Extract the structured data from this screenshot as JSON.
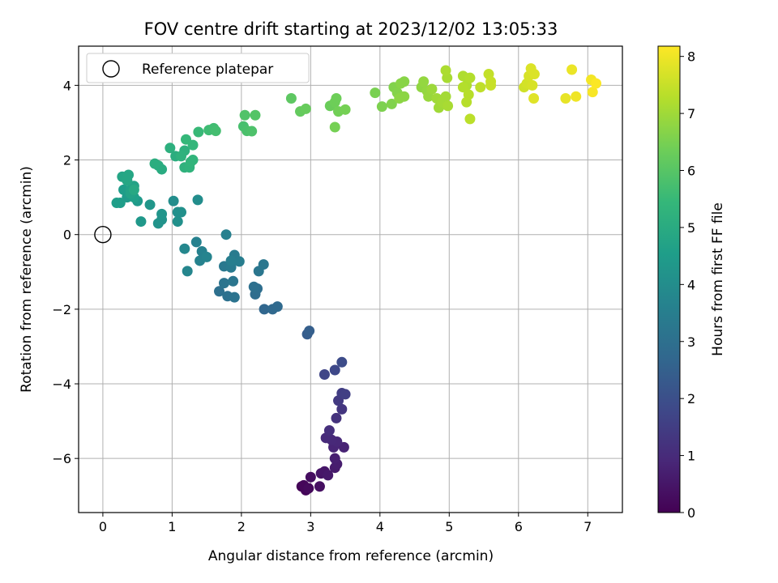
{
  "chart_data": {
    "type": "scatter",
    "title": "FOV centre drift starting at 2023/12/02 13:05:33",
    "xlabel": "Angular distance from reference (arcmin)",
    "ylabel": "Rotation from reference (arcmin)",
    "xlim": [
      -0.35,
      7.5
    ],
    "ylim": [
      -7.45,
      5.05
    ],
    "xticks": [
      0,
      1,
      2,
      3,
      4,
      5,
      6,
      7
    ],
    "yticks": [
      -6,
      -4,
      -2,
      0,
      2,
      4
    ],
    "grid": true,
    "legend": {
      "placement": "top-left",
      "label": "Reference platepar"
    },
    "reference_point": {
      "x": 0,
      "y": 0
    },
    "colorbar": {
      "label": "Hours from first FF file",
      "range": [
        0,
        8.18
      ],
      "ticks": [
        0,
        1,
        2,
        3,
        4,
        5,
        6,
        7,
        8
      ],
      "colormap": [
        "#440154",
        "#482878",
        "#3e4989",
        "#31688e",
        "#26828e",
        "#1f9e89",
        "#35b779",
        "#6ece58",
        "#b5de2b",
        "#fde725"
      ]
    },
    "series": [
      {
        "points": [
          {
            "x": 2.87,
            "y": -6.75,
            "t": 0.05
          },
          {
            "x": 2.93,
            "y": -6.85,
            "t": 0.1
          },
          {
            "x": 2.9,
            "y": -6.72,
            "t": 0.15
          },
          {
            "x": 2.97,
            "y": -6.8,
            "t": 0.2
          },
          {
            "x": 3.0,
            "y": -6.5,
            "t": 0.3
          },
          {
            "x": 3.13,
            "y": -6.75,
            "t": 0.35
          },
          {
            "x": 3.15,
            "y": -6.4,
            "t": 0.45
          },
          {
            "x": 3.2,
            "y": -6.35,
            "t": 0.5
          },
          {
            "x": 3.25,
            "y": -6.45,
            "t": 0.55
          },
          {
            "x": 3.35,
            "y": -6.25,
            "t": 0.6
          },
          {
            "x": 3.38,
            "y": -6.15,
            "t": 0.65
          },
          {
            "x": 3.35,
            "y": -6.0,
            "t": 0.7
          },
          {
            "x": 3.48,
            "y": -5.7,
            "t": 0.8
          },
          {
            "x": 3.33,
            "y": -5.7,
            "t": 0.85
          },
          {
            "x": 3.38,
            "y": -5.55,
            "t": 0.9
          },
          {
            "x": 3.3,
            "y": -5.5,
            "t": 0.95
          },
          {
            "x": 3.22,
            "y": -5.45,
            "t": 1.0
          },
          {
            "x": 3.27,
            "y": -5.25,
            "t": 1.1
          },
          {
            "x": 3.37,
            "y": -4.92,
            "t": 1.2
          },
          {
            "x": 3.45,
            "y": -4.68,
            "t": 1.3
          },
          {
            "x": 3.4,
            "y": -4.45,
            "t": 1.4
          },
          {
            "x": 3.45,
            "y": -4.25,
            "t": 1.5
          },
          {
            "x": 3.5,
            "y": -4.28,
            "t": 1.55
          },
          {
            "x": 3.2,
            "y": -3.75,
            "t": 1.7
          },
          {
            "x": 3.35,
            "y": -3.63,
            "t": 1.8
          },
          {
            "x": 3.45,
            "y": -3.42,
            "t": 1.9
          },
          {
            "x": 2.95,
            "y": -2.67,
            "t": 2.4
          },
          {
            "x": 2.98,
            "y": -2.58,
            "t": 2.45
          },
          {
            "x": 2.33,
            "y": -2.0,
            "t": 2.7
          },
          {
            "x": 2.45,
            "y": -2.0,
            "t": 2.75
          },
          {
            "x": 2.52,
            "y": -1.93,
            "t": 2.8
          },
          {
            "x": 2.2,
            "y": -1.6,
            "t": 2.9
          },
          {
            "x": 2.23,
            "y": -1.45,
            "t": 2.95
          },
          {
            "x": 2.18,
            "y": -1.4,
            "t": 3.0
          },
          {
            "x": 1.68,
            "y": -1.52,
            "t": 3.0
          },
          {
            "x": 1.8,
            "y": -1.65,
            "t": 3.05
          },
          {
            "x": 1.9,
            "y": -1.68,
            "t": 3.1
          },
          {
            "x": 1.75,
            "y": -1.3,
            "t": 3.15
          },
          {
            "x": 1.88,
            "y": -1.25,
            "t": 3.2
          },
          {
            "x": 2.25,
            "y": -0.98,
            "t": 3.2
          },
          {
            "x": 2.32,
            "y": -0.8,
            "t": 3.25
          },
          {
            "x": 1.75,
            "y": -0.85,
            "t": 3.3
          },
          {
            "x": 1.85,
            "y": -0.88,
            "t": 3.35
          },
          {
            "x": 1.9,
            "y": -0.55,
            "t": 3.4
          },
          {
            "x": 1.97,
            "y": -0.72,
            "t": 3.45
          },
          {
            "x": 1.85,
            "y": -0.7,
            "t": 3.5
          },
          {
            "x": 1.78,
            "y": 0.0,
            "t": 3.55
          },
          {
            "x": 1.35,
            "y": -0.2,
            "t": 3.6
          },
          {
            "x": 1.43,
            "y": -0.45,
            "t": 3.6
          },
          {
            "x": 1.4,
            "y": -0.7,
            "t": 3.65
          },
          {
            "x": 1.5,
            "y": -0.6,
            "t": 3.7
          },
          {
            "x": 1.22,
            "y": -0.98,
            "t": 3.75
          },
          {
            "x": 1.18,
            "y": -0.38,
            "t": 3.8
          },
          {
            "x": 1.37,
            "y": 0.93,
            "t": 4.0
          },
          {
            "x": 1.02,
            "y": 0.9,
            "t": 4.0
          },
          {
            "x": 1.08,
            "y": 0.6,
            "t": 4.05
          },
          {
            "x": 1.13,
            "y": 0.6,
            "t": 4.1
          },
          {
            "x": 1.08,
            "y": 0.35,
            "t": 4.1
          },
          {
            "x": 0.85,
            "y": 0.4,
            "t": 4.2
          },
          {
            "x": 0.8,
            "y": 0.3,
            "t": 4.2
          },
          {
            "x": 0.85,
            "y": 0.55,
            "t": 4.25
          },
          {
            "x": 0.68,
            "y": 0.8,
            "t": 4.3
          },
          {
            "x": 0.55,
            "y": 0.35,
            "t": 4.35
          },
          {
            "x": 0.5,
            "y": 0.9,
            "t": 4.4
          },
          {
            "x": 0.35,
            "y": 1.0,
            "t": 4.45
          },
          {
            "x": 0.3,
            "y": 1.2,
            "t": 4.5
          },
          {
            "x": 0.25,
            "y": 0.85,
            "t": 4.5
          },
          {
            "x": 0.2,
            "y": 0.85,
            "t": 4.55
          },
          {
            "x": 0.45,
            "y": 1.0,
            "t": 4.6
          },
          {
            "x": 0.4,
            "y": 1.2,
            "t": 4.65
          },
          {
            "x": 0.45,
            "y": 1.3,
            "t": 4.7
          },
          {
            "x": 0.4,
            "y": 1.1,
            "t": 4.7
          },
          {
            "x": 0.28,
            "y": 1.55,
            "t": 4.8
          },
          {
            "x": 0.37,
            "y": 1.6,
            "t": 4.85
          },
          {
            "x": 0.35,
            "y": 1.45,
            "t": 4.85
          },
          {
            "x": 0.45,
            "y": 1.2,
            "t": 4.9
          },
          {
            "x": 0.85,
            "y": 1.75,
            "t": 5.0
          },
          {
            "x": 0.8,
            "y": 1.85,
            "t": 5.05
          },
          {
            "x": 0.75,
            "y": 1.9,
            "t": 5.1
          },
          {
            "x": 1.05,
            "y": 2.1,
            "t": 5.1
          },
          {
            "x": 0.97,
            "y": 2.32,
            "t": 5.15
          },
          {
            "x": 1.18,
            "y": 2.25,
            "t": 5.2
          },
          {
            "x": 1.13,
            "y": 2.1,
            "t": 5.25
          },
          {
            "x": 1.18,
            "y": 1.8,
            "t": 5.25
          },
          {
            "x": 1.25,
            "y": 1.8,
            "t": 5.3
          },
          {
            "x": 1.27,
            "y": 1.95,
            "t": 5.35
          },
          {
            "x": 1.3,
            "y": 2.0,
            "t": 5.35
          },
          {
            "x": 1.3,
            "y": 2.4,
            "t": 5.4
          },
          {
            "x": 1.2,
            "y": 2.55,
            "t": 5.45
          },
          {
            "x": 1.38,
            "y": 2.75,
            "t": 5.5
          },
          {
            "x": 1.53,
            "y": 2.8,
            "t": 5.6
          },
          {
            "x": 1.6,
            "y": 2.85,
            "t": 5.65
          },
          {
            "x": 1.63,
            "y": 2.78,
            "t": 5.7
          },
          {
            "x": 2.03,
            "y": 2.9,
            "t": 5.75
          },
          {
            "x": 2.08,
            "y": 2.78,
            "t": 5.8
          },
          {
            "x": 2.15,
            "y": 2.77,
            "t": 5.85
          },
          {
            "x": 2.05,
            "y": 3.2,
            "t": 5.9
          },
          {
            "x": 2.2,
            "y": 3.2,
            "t": 5.95
          },
          {
            "x": 2.72,
            "y": 3.65,
            "t": 6.1
          },
          {
            "x": 2.85,
            "y": 3.3,
            "t": 6.2
          },
          {
            "x": 2.93,
            "y": 3.37,
            "t": 6.25
          },
          {
            "x": 3.28,
            "y": 3.45,
            "t": 6.3
          },
          {
            "x": 3.35,
            "y": 3.55,
            "t": 6.35
          },
          {
            "x": 3.37,
            "y": 3.65,
            "t": 6.35
          },
          {
            "x": 3.4,
            "y": 3.3,
            "t": 6.4
          },
          {
            "x": 3.5,
            "y": 3.35,
            "t": 6.45
          },
          {
            "x": 3.35,
            "y": 2.88,
            "t": 6.45
          },
          {
            "x": 3.93,
            "y": 3.8,
            "t": 6.5
          },
          {
            "x": 4.03,
            "y": 3.43,
            "t": 6.55
          },
          {
            "x": 4.17,
            "y": 3.5,
            "t": 6.6
          },
          {
            "x": 4.2,
            "y": 3.95,
            "t": 6.6
          },
          {
            "x": 4.25,
            "y": 3.8,
            "t": 6.65
          },
          {
            "x": 4.3,
            "y": 4.05,
            "t": 6.7
          },
          {
            "x": 4.35,
            "y": 4.1,
            "t": 6.7
          },
          {
            "x": 4.28,
            "y": 3.65,
            "t": 6.75
          },
          {
            "x": 4.35,
            "y": 3.7,
            "t": 6.75
          },
          {
            "x": 4.6,
            "y": 3.95,
            "t": 6.8
          },
          {
            "x": 4.63,
            "y": 4.1,
            "t": 6.85
          },
          {
            "x": 4.68,
            "y": 3.85,
            "t": 6.85
          },
          {
            "x": 4.7,
            "y": 3.7,
            "t": 6.9
          },
          {
            "x": 4.75,
            "y": 3.9,
            "t": 6.95
          },
          {
            "x": 4.82,
            "y": 3.65,
            "t": 7.0
          },
          {
            "x": 4.85,
            "y": 3.4,
            "t": 7.0
          },
          {
            "x": 4.9,
            "y": 3.55,
            "t": 7.05
          },
          {
            "x": 4.95,
            "y": 3.7,
            "t": 7.05
          },
          {
            "x": 4.98,
            "y": 3.45,
            "t": 7.1
          },
          {
            "x": 4.97,
            "y": 4.2,
            "t": 7.1
          },
          {
            "x": 4.95,
            "y": 4.4,
            "t": 7.15
          },
          {
            "x": 5.2,
            "y": 4.25,
            "t": 7.2
          },
          {
            "x": 5.25,
            "y": 4.0,
            "t": 7.2
          },
          {
            "x": 5.2,
            "y": 3.95,
            "t": 7.25
          },
          {
            "x": 5.3,
            "y": 4.2,
            "t": 7.25
          },
          {
            "x": 5.28,
            "y": 3.75,
            "t": 7.3
          },
          {
            "x": 5.25,
            "y": 3.55,
            "t": 7.3
          },
          {
            "x": 5.3,
            "y": 3.1,
            "t": 7.35
          },
          {
            "x": 5.45,
            "y": 3.95,
            "t": 7.4
          },
          {
            "x": 5.57,
            "y": 4.3,
            "t": 7.45
          },
          {
            "x": 5.6,
            "y": 4.1,
            "t": 7.5
          },
          {
            "x": 5.6,
            "y": 4.0,
            "t": 7.5
          },
          {
            "x": 6.08,
            "y": 3.95,
            "t": 7.6
          },
          {
            "x": 6.12,
            "y": 4.05,
            "t": 7.65
          },
          {
            "x": 6.15,
            "y": 4.25,
            "t": 7.7
          },
          {
            "x": 6.2,
            "y": 4.0,
            "t": 7.7
          },
          {
            "x": 6.18,
            "y": 4.45,
            "t": 7.75
          },
          {
            "x": 6.23,
            "y": 4.3,
            "t": 7.75
          },
          {
            "x": 6.22,
            "y": 3.65,
            "t": 7.8
          },
          {
            "x": 6.68,
            "y": 3.65,
            "t": 7.9
          },
          {
            "x": 6.77,
            "y": 4.42,
            "t": 7.95
          },
          {
            "x": 6.83,
            "y": 3.7,
            "t": 8.0
          },
          {
            "x": 7.05,
            "y": 4.15,
            "t": 8.05
          },
          {
            "x": 7.07,
            "y": 3.82,
            "t": 8.1
          },
          {
            "x": 7.12,
            "y": 4.05,
            "t": 8.15
          }
        ]
      }
    ]
  }
}
